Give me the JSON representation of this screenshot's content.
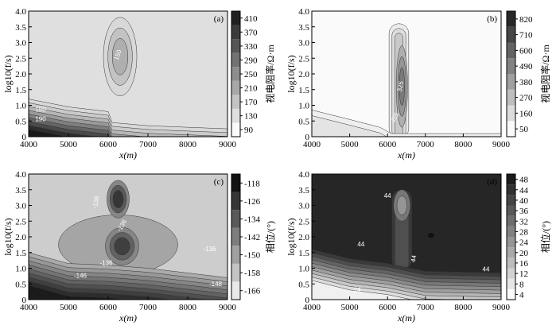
{
  "chart_data": [
    {
      "panel": "(a)",
      "type": "contour",
      "xlabel": "x(m)",
      "ylabel": "log10(f/s)",
      "xlim": [
        4000,
        9000
      ],
      "ylim": [
        0,
        4.0
      ],
      "xticks": [
        "4000",
        "5000",
        "6000",
        "7000",
        "8000",
        "9000"
      ],
      "yticks": [
        "0",
        "0.5",
        "1.0",
        "1.5",
        "2.0",
        "2.5",
        "3.0",
        "3.5",
        "4.0"
      ],
      "colorbar_label": "视电阻率/Ω·m",
      "colorbar_ticks": [
        "90",
        "130",
        "170",
        "210",
        "250",
        "290",
        "330",
        "370",
        "410"
      ],
      "colorbar_range": [
        90,
        430
      ],
      "background_value": 130,
      "contour_labels": [
        {
          "text": "150",
          "x": 6250,
          "y": 2.6,
          "rot": -70,
          "color": "#ffffff"
        },
        {
          "text": "150",
          "x": 4300,
          "y": 0.85,
          "rot": 0,
          "color": "#ffffff"
        },
        {
          "text": "190",
          "x": 4300,
          "y": 0.55,
          "rot": 0,
          "color": "#ffffff"
        }
      ],
      "features": [
        {
          "kind": "blob",
          "x": 6300,
          "y": 2.55,
          "rx": 420,
          "ry": 1.25,
          "levels": [
            140,
            170,
            200
          ]
        },
        {
          "kind": "layers",
          "profile": [
            [
              4000,
              1.2
            ],
            [
              5000,
              0.95
            ],
            [
              6000,
              0.8
            ],
            [
              6100,
              0.45
            ],
            [
              7000,
              0.35
            ],
            [
              9000,
              0.25
            ]
          ],
          "levels": [
            140,
            160,
            190,
            230,
            270,
            310,
            350,
            390,
            420
          ],
          "step": 0.12
        }
      ]
    },
    {
      "panel": "(b)",
      "type": "contour",
      "xlabel": "x(m)",
      "ylabel": "log10(f/s)",
      "xlim": [
        4000,
        9000
      ],
      "ylim": [
        0,
        4.0
      ],
      "xticks": [
        "4000",
        "5000",
        "6000",
        "7000",
        "8000",
        "9000"
      ],
      "yticks": [
        "0",
        "0.5",
        "1.0",
        "1.5",
        "2.0",
        "2.5",
        "3.0",
        "3.5",
        "4.0"
      ],
      "colorbar_label": "视电阻率/Ω·m",
      "colorbar_ticks": [
        "50",
        "160",
        "270",
        "380",
        "490",
        "600",
        "710",
        "820"
      ],
      "colorbar_range": [
        50,
        900
      ],
      "background_value": 50,
      "contour_labels": [
        {
          "text": "325",
          "x": 6350,
          "y": 1.6,
          "rot": -80,
          "color": "#ffffff"
        },
        {
          "text": "325",
          "x": 6200,
          "y": 0.6,
          "rot": -60,
          "color": "#ffffff"
        }
      ],
      "features": [
        {
          "kind": "column",
          "x": 6300,
          "xw": 520,
          "y0": 0,
          "y1": 3.6,
          "levels": [
            100,
            160,
            230
          ]
        },
        {
          "kind": "blob",
          "x": 6380,
          "y": 1.6,
          "rx": 150,
          "ry": 1.3,
          "levels": [
            330,
            420,
            520
          ]
        },
        {
          "kind": "layers",
          "profile": [
            [
              4000,
              0.85
            ],
            [
              5000,
              0.55
            ],
            [
              5800,
              0.3
            ],
            [
              6100,
              0.1
            ],
            [
              9000,
              0.1
            ]
          ],
          "levels": [
            90,
            130
          ],
          "step": 0.18
        }
      ]
    },
    {
      "panel": "(c)",
      "type": "contour",
      "xlabel": "x(m)",
      "ylabel": "log10(f/s)",
      "xlim": [
        4000,
        9000
      ],
      "ylim": [
        0,
        4.0
      ],
      "xticks": [
        "4000",
        "5000",
        "6000",
        "7000",
        "8000",
        "9000"
      ],
      "yticks": [
        "0",
        "0.5",
        "1.0",
        "1.5",
        "2.0",
        "2.5",
        "3.0",
        "3.5",
        "4.0"
      ],
      "colorbar_label": "相位/(°)",
      "colorbar_ticks": [
        "-118",
        "-126",
        "-134",
        "-142",
        "-150",
        "-158",
        "-166"
      ],
      "colorbar_range": [
        -166,
        -114
      ],
      "colorbar_reversed": true,
      "background_value": -124,
      "contour_labels": [
        {
          "text": "-136",
          "x": 5700,
          "y": 3.1,
          "rot": -80,
          "color": "#ffffff"
        },
        {
          "text": "-136",
          "x": 6350,
          "y": 2.35,
          "rot": -60,
          "color": "#ffffff"
        },
        {
          "text": "-136",
          "x": 5950,
          "y": 1.15,
          "rot": 0,
          "color": "#ffffff"
        },
        {
          "text": "-136",
          "x": 8550,
          "y": 1.6,
          "rot": 0,
          "color": "#ffffff"
        },
        {
          "text": "-146",
          "x": 5300,
          "y": 0.75,
          "rot": 0,
          "color": "#ffffff"
        },
        {
          "text": "-148",
          "x": 8700,
          "y": 0.48,
          "rot": 0,
          "color": "#ffffff"
        }
      ],
      "features": [
        {
          "kind": "blob",
          "x": 6250,
          "y": 1.75,
          "rx": 1500,
          "ry": 0.95,
          "levels": [
            -133
          ]
        },
        {
          "kind": "blob",
          "x": 6350,
          "y": 1.7,
          "rx": 420,
          "ry": 0.6,
          "levels": [
            -140,
            -148,
            -156
          ]
        },
        {
          "kind": "blob",
          "x": 6250,
          "y": 3.2,
          "rx": 280,
          "ry": 0.6,
          "levels": [
            -140,
            -150,
            -158
          ]
        },
        {
          "kind": "layers",
          "profile": [
            [
              4000,
              1.5
            ],
            [
              5000,
              1.15
            ],
            [
              6000,
              1.1
            ],
            [
              7000,
              1.0
            ],
            [
              9000,
              0.7
            ]
          ],
          "levels": [
            -132,
            -136,
            -140,
            -144,
            -148,
            -152,
            -156,
            -160,
            -164
          ],
          "step": 0.13
        }
      ]
    },
    {
      "panel": "(d)",
      "type": "contour",
      "xlabel": "x(m)",
      "ylabel": "log10(f/s)",
      "xlim": [
        4000,
        9000
      ],
      "ylim": [
        0,
        4.0
      ],
      "xticks": [
        "4000",
        "5000",
        "6000",
        "7000",
        "8000",
        "9000"
      ],
      "yticks": [
        "0",
        "0.5",
        "1.0",
        "1.5",
        "2.0",
        "2.5",
        "3.0",
        "3.5",
        "4.0"
      ],
      "colorbar_label": "相位/(°)",
      "colorbar_ticks": [
        "4",
        "8",
        "12",
        "16",
        "20",
        "24",
        "28",
        "32",
        "36",
        "40",
        "44",
        "48"
      ],
      "colorbar_range": [
        4,
        50
      ],
      "background_value": 46,
      "contour_labels": [
        {
          "text": "44",
          "x": 6000,
          "y": 3.3,
          "rot": 0,
          "color": "#ffffff"
        },
        {
          "text": "44",
          "x": 5300,
          "y": 1.75,
          "rot": 0,
          "color": "#ffffff"
        },
        {
          "text": "44",
          "x": 6700,
          "y": 1.3,
          "rot": -80,
          "color": "#ffffff"
        },
        {
          "text": "44",
          "x": 8600,
          "y": 0.95,
          "rot": 0,
          "color": "#ffffff"
        },
        {
          "text": "24",
          "x": 5200,
          "y": 0.3,
          "rot": 0,
          "color": "#ffffff"
        }
      ],
      "features": [
        {
          "kind": "column",
          "x": 6380,
          "xw": 520,
          "y0": 1.0,
          "y1": 3.5,
          "levels": [
            42,
            38
          ]
        },
        {
          "kind": "blob",
          "x": 6380,
          "y": 3.0,
          "rx": 220,
          "ry": 0.5,
          "levels": [
            30,
            24
          ]
        },
        {
          "kind": "dot",
          "x": 7150,
          "y": 2.05,
          "r": 70,
          "value": 50
        },
        {
          "kind": "layers",
          "profile": [
            [
              4000,
              1.6
            ],
            [
              5000,
              1.3
            ],
            [
              6000,
              1.15
            ],
            [
              7000,
              0.9
            ],
            [
              9000,
              0.85
            ]
          ],
          "levels": [
            42,
            38,
            34,
            30,
            26,
            22,
            18,
            14,
            10,
            6
          ],
          "step": 0.11
        }
      ]
    }
  ]
}
